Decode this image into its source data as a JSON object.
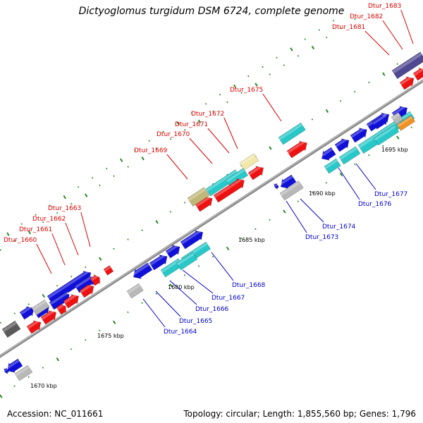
{
  "title": "Dictyoglomus turgidum DSM 6724, complete genome",
  "footer": {
    "accession": "Accession: NC_011661",
    "topology": "Topology: circular; Length: 1,855,560 bp; Genes: 1,796"
  },
  "colors": {
    "backbone": "#8a8a8a",
    "tick": "#2a8a2a",
    "label_red": "#dd0000",
    "label_blue": "#0000cc"
  },
  "scale_labels": [
    "1670 kbp",
    "1675 kbp",
    "1680 kbp",
    "1685 kbp",
    "1690 kbp",
    "1695 kbp"
  ],
  "features": [
    {
      "kind": "gene",
      "color": "#1010d8"
    },
    {
      "kind": "gene",
      "color": "#1010d8"
    },
    {
      "kind": "gene",
      "color": "#1010d8"
    },
    {
      "kind": "gene",
      "color": "#1010d8"
    },
    {
      "kind": "gene",
      "color": "#1010d8"
    },
    {
      "kind": "gene",
      "color": "#1010d8"
    },
    {
      "kind": "gene",
      "color": "#1010d8"
    },
    {
      "kind": "gene",
      "color": "#1010d8"
    },
    {
      "kind": "gene",
      "color": "#1010d8"
    },
    {
      "kind": "gene",
      "color": "#1010d8"
    },
    {
      "kind": "gene",
      "color": "#1010d8"
    },
    {
      "kind": "gene",
      "color": "#1010d8"
    },
    {
      "kind": "gene",
      "color": "#1010d8"
    },
    {
      "kind": "gene",
      "color": "#1010d8"
    },
    {
      "kind": "gene",
      "color": "#1010d8"
    },
    {
      "kind": "gene",
      "color": "#1010d8"
    },
    {
      "kind": "gene",
      "color": "#1010d8"
    },
    {
      "kind": "gene",
      "color": "#1010d8"
    },
    {
      "kind": "gene",
      "color": "#1010d8"
    },
    {
      "kind": "cds",
      "color": "#28c8c8"
    },
    {
      "kind": "cds",
      "color": "#28c8c8"
    },
    {
      "kind": "cds",
      "color": "#28c8c8"
    },
    {
      "kind": "cds",
      "color": "#28c8c8"
    },
    {
      "kind": "cds",
      "color": "#28c8c8"
    },
    {
      "kind": "cds",
      "color": "#28c8c8"
    },
    {
      "kind": "cds",
      "color": "#28c8c8"
    },
    {
      "kind": "cds",
      "color": "#28c8c8"
    },
    {
      "kind": "cds",
      "color": "#28c8c8"
    },
    {
      "kind": "cds",
      "color": "#28c8c8"
    },
    {
      "kind": "cds",
      "color": "#28c8c8"
    },
    {
      "kind": "cds",
      "color": "#28c8c8"
    },
    {
      "kind": "gene",
      "color": "#ee1111"
    },
    {
      "kind": "gene",
      "color": "#ee1111"
    },
    {
      "kind": "gene",
      "color": "#ee1111"
    },
    {
      "kind": "gene",
      "color": "#ee1111"
    },
    {
      "kind": "gene",
      "color": "#ee1111"
    },
    {
      "kind": "gene",
      "color": "#ee1111"
    },
    {
      "kind": "gene",
      "color": "#ee1111"
    },
    {
      "kind": "gene",
      "color": "#ee1111"
    },
    {
      "kind": "gene",
      "color": "#ee1111"
    },
    {
      "kind": "gene",
      "color": "#ee1111"
    },
    {
      "kind": "gene",
      "color": "#ee1111"
    },
    {
      "kind": "gene",
      "color": "#ee1111"
    },
    {
      "kind": "gene",
      "color": "#ee1111"
    },
    {
      "kind": "other",
      "color": "#b8b8b8"
    },
    {
      "kind": "other",
      "color": "#b8b8b8"
    },
    {
      "kind": "other",
      "color": "#b8b8b8"
    },
    {
      "kind": "other",
      "color": "#b8b8b8"
    },
    {
      "kind": "other",
      "color": "#b8b8b8"
    },
    {
      "kind": "other",
      "color": "#5a5a5a"
    },
    {
      "kind": "other",
      "color": "#c0b878"
    },
    {
      "kind": "other",
      "color": "#f2e8a8"
    },
    {
      "kind": "other",
      "color": "#504890"
    },
    {
      "kind": "other",
      "color": "#f09020"
    }
  ],
  "labels": [
    {
      "text": "Dtur_1660",
      "color": "red"
    },
    {
      "text": "Dtur_1661",
      "color": "red"
    },
    {
      "text": "Dtur_1662",
      "color": "red"
    },
    {
      "text": "Dtur_1663",
      "color": "red"
    },
    {
      "text": "Dtur_1664",
      "color": "blue"
    },
    {
      "text": "Dtur_1665",
      "color": "blue"
    },
    {
      "text": "Dtur_1666",
      "color": "blue"
    },
    {
      "text": "Dtur_1667",
      "color": "blue"
    },
    {
      "text": "Dtur_1668",
      "color": "blue"
    },
    {
      "text": "Dtur_1669",
      "color": "red"
    },
    {
      "text": "Dtur_1670",
      "color": "red"
    },
    {
      "text": "Dtur_1671",
      "color": "red"
    },
    {
      "text": "Dtur_1672",
      "color": "red"
    },
    {
      "text": "Dtur_1673",
      "color": "blue"
    },
    {
      "text": "Dtur_1674",
      "color": "blue"
    },
    {
      "text": "Dtur_1675",
      "color": "red"
    },
    {
      "text": "Dtur_1676",
      "color": "blue"
    },
    {
      "text": "Dtur_1677",
      "color": "blue"
    },
    {
      "text": "Dtur_1681",
      "color": "red"
    },
    {
      "text": "Dtur_1682",
      "color": "red"
    },
    {
      "text": "Dtur_1683",
      "color": "red"
    }
  ]
}
